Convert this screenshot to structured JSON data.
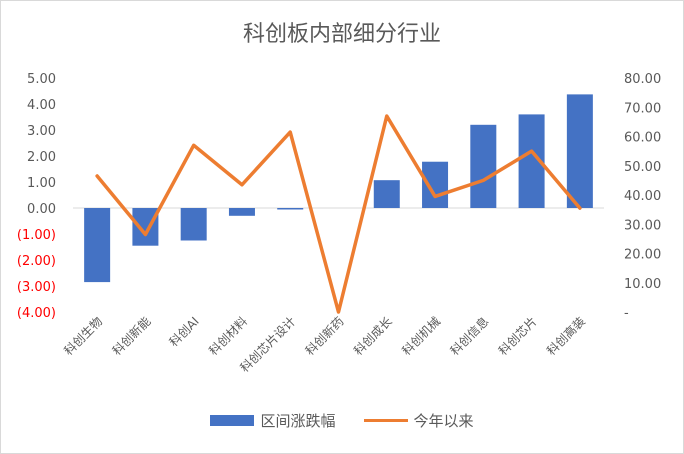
{
  "chart_data": {
    "type": "bar+line",
    "title": "科创板内部细分行业",
    "categories": [
      "科创生物",
      "科创新能",
      "科创AI",
      "科创材料",
      "科创芯片设计",
      "科创新药",
      "科创成长",
      "科创机械",
      "科创信息",
      "科创芯片",
      "科创高装"
    ],
    "series": [
      {
        "name": "区间涨跌幅",
        "type": "bar",
        "axis": "left",
        "color": "#4472c4",
        "values": [
          -2.85,
          -1.45,
          -1.25,
          -0.3,
          -0.05,
          0.0,
          1.07,
          1.78,
          3.2,
          3.6,
          4.37
        ]
      },
      {
        "name": "今年以来",
        "type": "line",
        "axis": "right",
        "color": "#ed7d31",
        "values": [
          46.5,
          26.5,
          57.0,
          43.5,
          61.5,
          0.0,
          67.0,
          39.5,
          45.0,
          55.0,
          35.5
        ]
      }
    ],
    "y_left": {
      "min": -4,
      "max": 5,
      "ticks": [
        "5.00",
        "4.00",
        "3.00",
        "2.00",
        "1.00",
        "0.00",
        "(1.00)",
        "(2.00)",
        "(3.00)",
        "(4.00)"
      ],
      "negative_tick_color": "#ff0000"
    },
    "y_right": {
      "min": 0,
      "max": 80,
      "ticks": [
        "80.00",
        "70.00",
        "60.00",
        "50.00",
        "40.00",
        "30.00",
        "20.00",
        "10.00",
        "-"
      ]
    },
    "legend": "bottom",
    "grid": false
  }
}
